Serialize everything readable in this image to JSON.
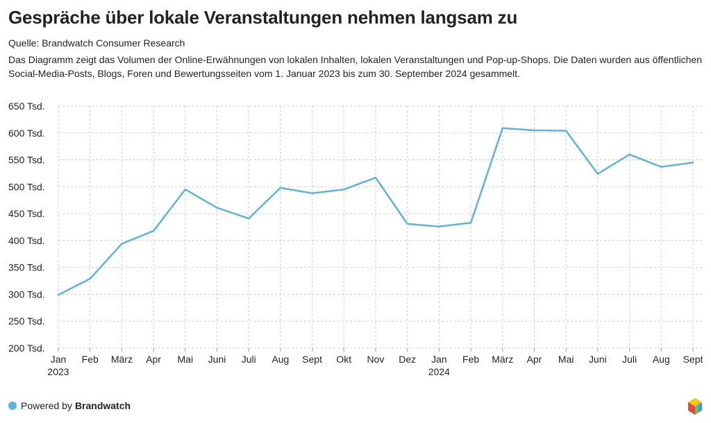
{
  "title": "Gespräche über lokale Veranstaltungen nehmen langsam zu",
  "source": "Quelle: Brandwatch Consumer Research",
  "description": "Das Diagramm zeigt das Volumen der Online-Erwähnungen von lokalen Inhalten, lokalen Veranstaltungen und Pop-up-Shops. Die Daten wurden aus öffentlichen Social-Media-Posts, Blogs, Foren und Bewertungsseiten vom 1. Januar 2023 bis zum 30. September 2024 gesammelt.",
  "footer": {
    "prefix": "Powered by",
    "brand": "Brandwatch"
  },
  "colors": {
    "line": "#5ab4dc",
    "grid": "#cccccc",
    "text": "#222222"
  },
  "chart_data": {
    "type": "line",
    "title": "Gespräche über lokale Veranstaltungen nehmen langsam zu",
    "xlabel": "",
    "ylabel": "",
    "ylim": [
      200000,
      650000
    ],
    "yticks": [
      200000,
      250000,
      300000,
      350000,
      400000,
      450000,
      500000,
      550000,
      600000,
      650000
    ],
    "ytick_labels": [
      "200 Tsd.",
      "250 Tsd.",
      "300 Tsd.",
      "350 Tsd.",
      "400 Tsd.",
      "450 Tsd.",
      "500 Tsd.",
      "550 Tsd.",
      "600 Tsd.",
      "650 Tsd."
    ],
    "categories": [
      "Jan",
      "Feb",
      "März",
      "Apr",
      "Mai",
      "Juni",
      "Juli",
      "Aug",
      "Sept",
      "Okt",
      "Nov",
      "Dez",
      "Jan",
      "Feb",
      "März",
      "Apr",
      "Mai",
      "Juni",
      "Juli",
      "Aug",
      "Sept"
    ],
    "year_labels": {
      "0": "2023",
      "12": "2024"
    },
    "grid": true,
    "series": [
      {
        "name": "Erwähnungen",
        "values": [
          299000,
          329000,
          394000,
          418000,
          495000,
          461000,
          441000,
          498000,
          488000,
          495000,
          517000,
          431000,
          426000,
          433000,
          609000,
          605000,
          604000,
          524000,
          560000,
          537000,
          545000
        ]
      }
    ]
  }
}
